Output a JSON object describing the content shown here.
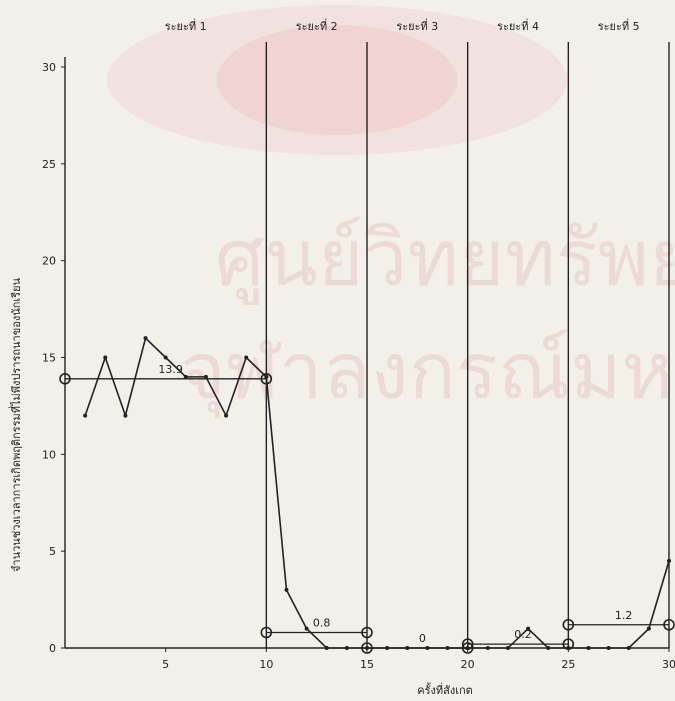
{
  "chart_data": {
    "type": "line",
    "xlabel": "ครั้งที่สังเกต",
    "ylabel": "จำนวนช่วงเวลาการเกิดพฤติกรรมที่ไม่พึงปรารถนาของนักเรียน",
    "xlim": [
      0,
      30
    ],
    "ylim": [
      0,
      30
    ],
    "x_ticks": [
      5,
      10,
      15,
      20,
      25,
      30
    ],
    "y_ticks": [
      0,
      5,
      10,
      15,
      20,
      25,
      30
    ],
    "phase_labels": [
      "ระยะที่ 1",
      "ระยะที่ 2",
      "ระยะที่ 3",
      "ระยะที่ 4",
      "ระยะที่ 5"
    ],
    "phase_boundaries": [
      10,
      15,
      20,
      25,
      30
    ],
    "series": [
      {
        "x": [
          1,
          2,
          3,
          4,
          5,
          6,
          7,
          8,
          9,
          10,
          11,
          12,
          13,
          14,
          15,
          16,
          17,
          18,
          19,
          20,
          21,
          22,
          23,
          24,
          25,
          26,
          27,
          28,
          29,
          30
        ],
        "y": [
          12,
          15,
          12,
          16,
          15,
          14,
          14,
          12,
          15,
          14,
          3,
          1,
          0,
          0,
          0,
          0,
          0,
          0,
          0,
          0,
          0,
          0,
          1,
          0,
          0,
          0,
          0,
          0,
          1,
          4.5
        ]
      }
    ],
    "means": [
      {
        "x": [
          0,
          10
        ],
        "value": 13.9,
        "label": "13.9"
      },
      {
        "x": [
          10,
          15
        ],
        "value": 0.8,
        "label": "0.8"
      },
      {
        "x": [
          15,
          20
        ],
        "value": 0,
        "label": "0"
      },
      {
        "x": [
          20,
          25
        ],
        "value": 0.2,
        "label": "0.2"
      },
      {
        "x": [
          25,
          30
        ],
        "value": 1.2,
        "label": "1.2"
      }
    ],
    "watermark": [
      "ศูนย์วิทยทรัพยากร",
      "จุฬาลงกรณ์มหาวิทยาลัย"
    ]
  }
}
